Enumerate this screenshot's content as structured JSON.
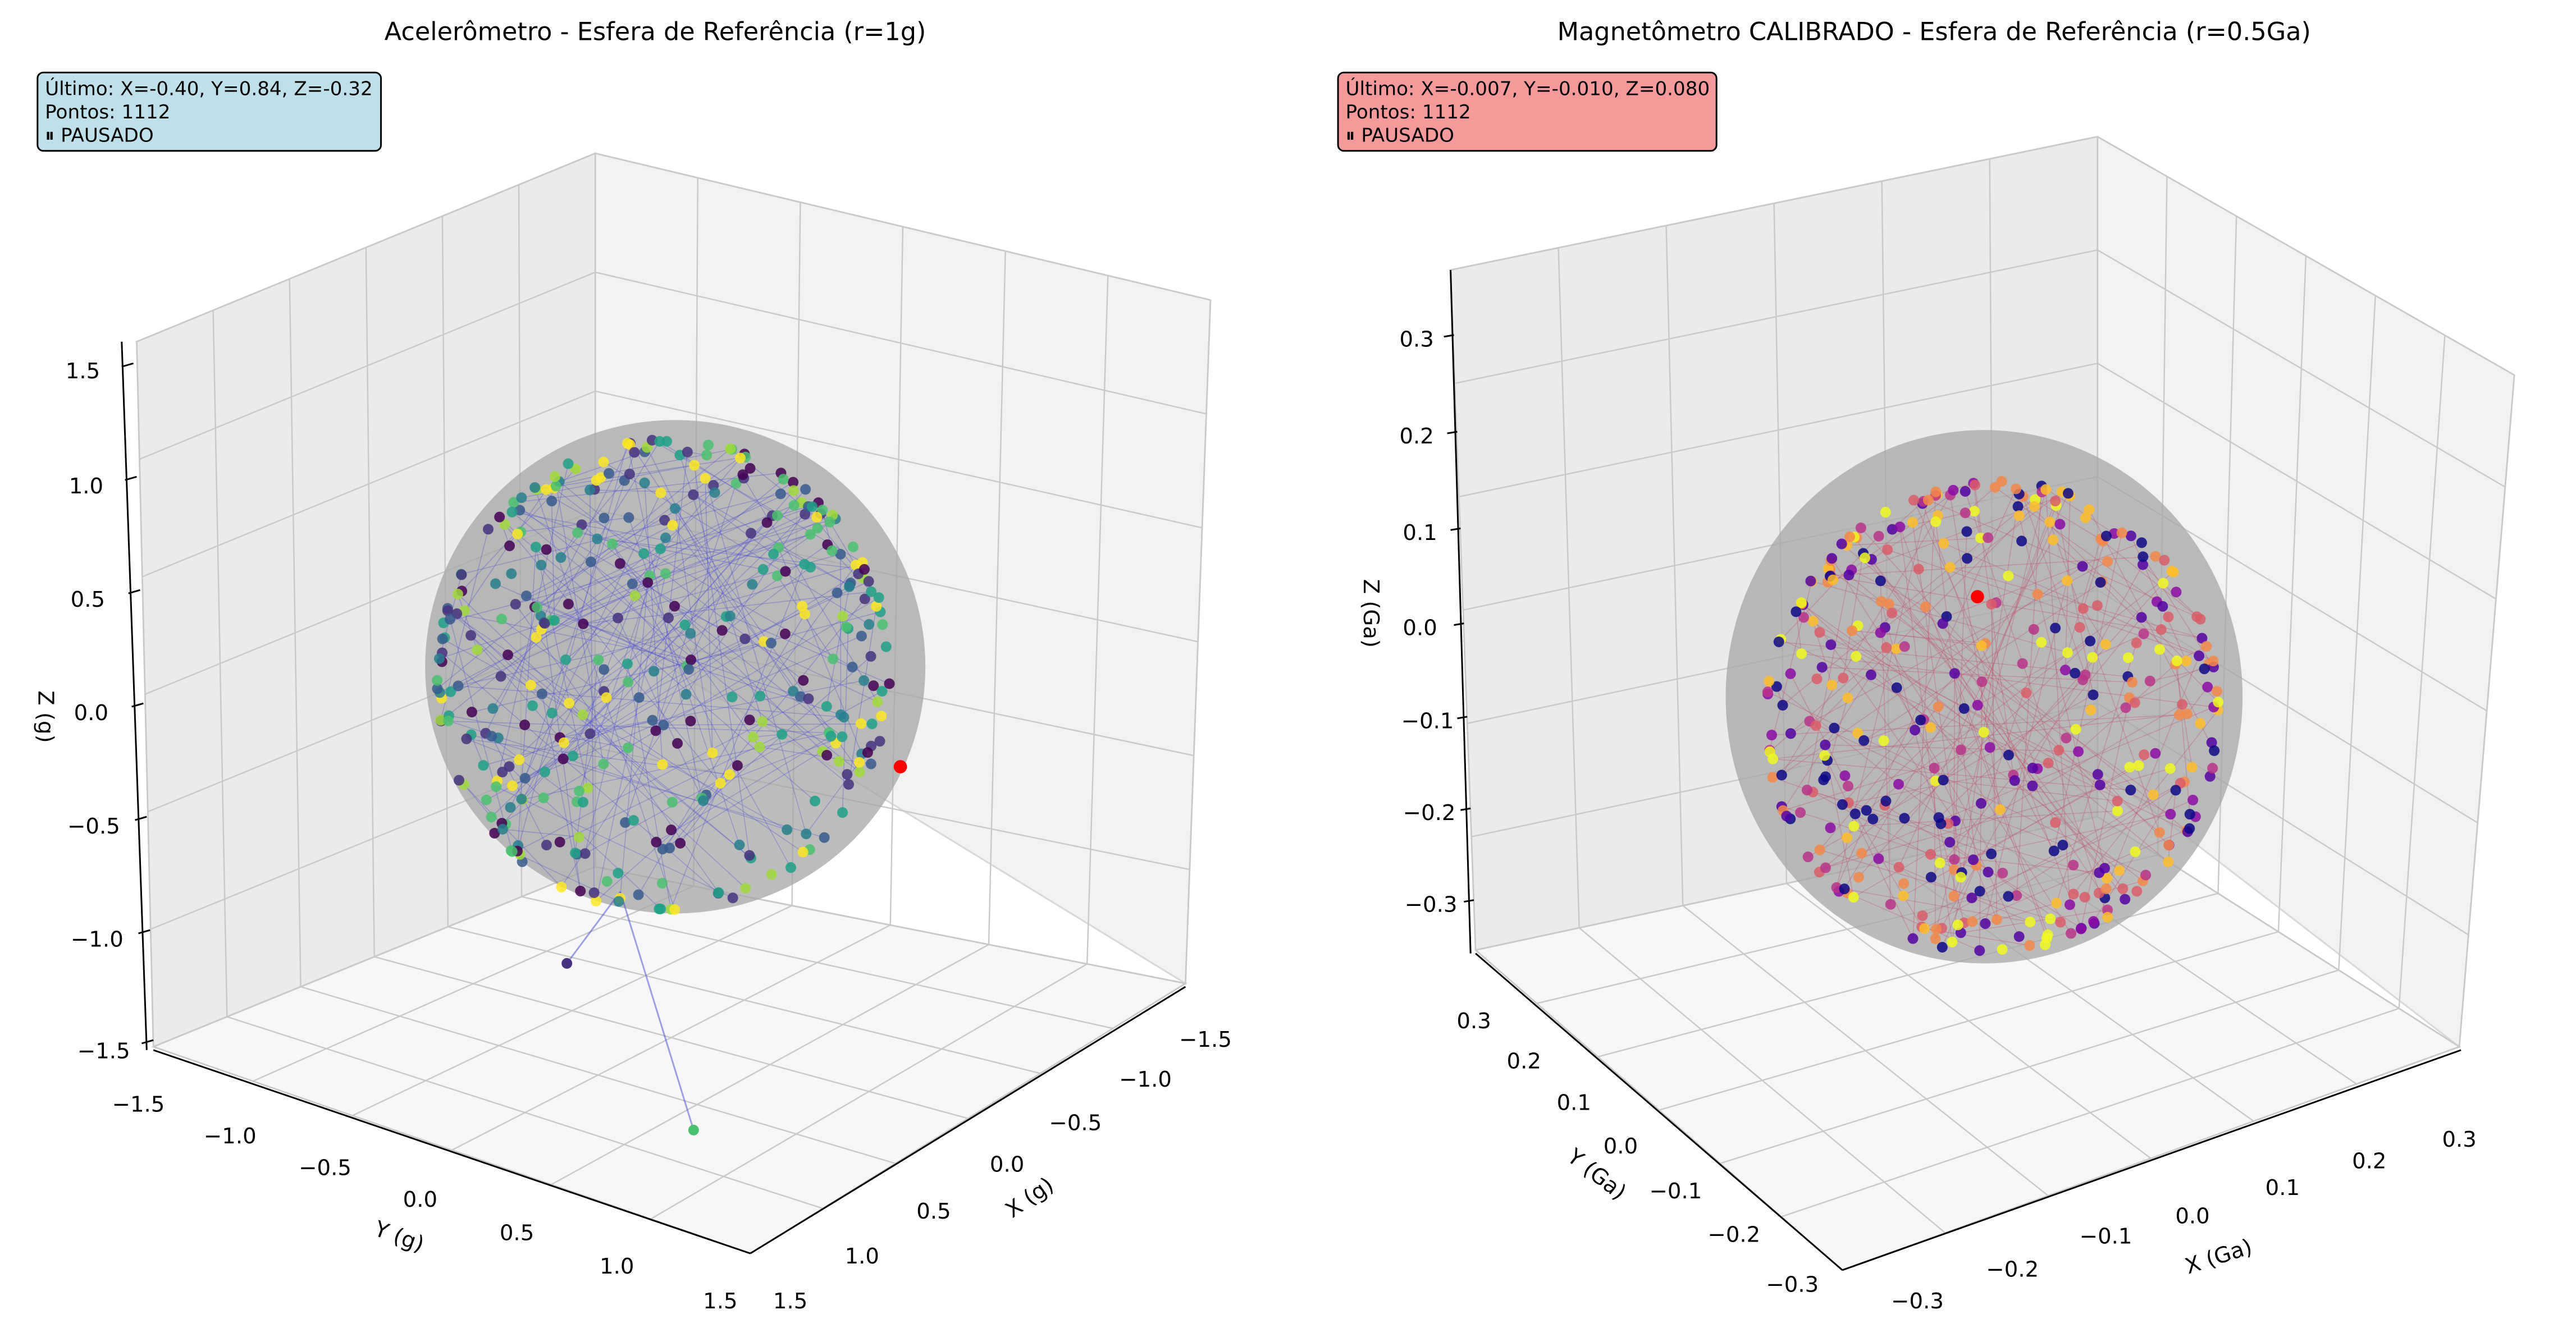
{
  "colors": {
    "acc_box": "#bde0ea",
    "mag_box": "#f49a9a",
    "acc_line": "#4747d6",
    "mag_line": "#c24a6a",
    "sphere": "#a6a6a6"
  },
  "chart_data": [
    {
      "type": "scatter",
      "title": "Acelerômetro - Esfera de Referência (r=1g)",
      "xlabel": "X (g)",
      "ylabel": "Y (g)",
      "zlabel": "Z (g)",
      "xticks": [
        "−1.5",
        "−1.0",
        "−0.5",
        "0.0",
        "0.5",
        "1.0",
        "1.5"
      ],
      "yticks": [
        "−1.5",
        "−1.0",
        "−0.5",
        "0.0",
        "0.5",
        "1.0",
        "1.5"
      ],
      "zticks": [
        "−1.5",
        "−1.0",
        "−0.5",
        "0.0",
        "0.5",
        "1.0",
        "1.5"
      ],
      "xlim": [
        -1.5,
        1.5
      ],
      "ylim": [
        -1.5,
        1.5
      ],
      "zlim": [
        -1.5,
        1.5
      ],
      "sphere_radius": 1,
      "colormap": "viridis",
      "info": {
        "last": "Último: X=-0.40, Y=0.84, Z=-0.32",
        "points": "Pontos: 1112",
        "status": "⏸ PAUSADO"
      },
      "n_points": 1112,
      "last_point": [
        -0.4,
        0.84,
        -0.32
      ],
      "grid": true
    },
    {
      "type": "scatter",
      "title": "Magnetômetro CALIBRADO - Esfera de Referência (r=0.5Ga)",
      "xlabel": "X (Ga)",
      "ylabel": "Y (Ga)",
      "zlabel": "Z (Ga)",
      "xticks": [
        "−0.3",
        "−0.2",
        "−0.1",
        "0.0",
        "0.1",
        "0.2",
        "0.3"
      ],
      "yticks": [
        "−0.3",
        "−0.2",
        "−0.1",
        "0.0",
        "0.1",
        "0.2",
        "0.3"
      ],
      "zticks": [
        "−0.3",
        "−0.2",
        "−0.1",
        "0.0",
        "0.1",
        "0.2",
        "0.3"
      ],
      "xlim": [
        -0.35,
        0.35
      ],
      "ylim": [
        -0.35,
        0.35
      ],
      "zlim": [
        -0.35,
        0.35
      ],
      "sphere_radius": 0.5,
      "colormap": "plasma",
      "info": {
        "last": "Último: X=-0.007, Y=-0.010, Z=0.080",
        "points": "Pontos: 1112",
        "status": "⏸ PAUSADO"
      },
      "n_points": 1112,
      "last_point": [
        -0.007,
        -0.01,
        0.08
      ],
      "grid": true
    }
  ]
}
